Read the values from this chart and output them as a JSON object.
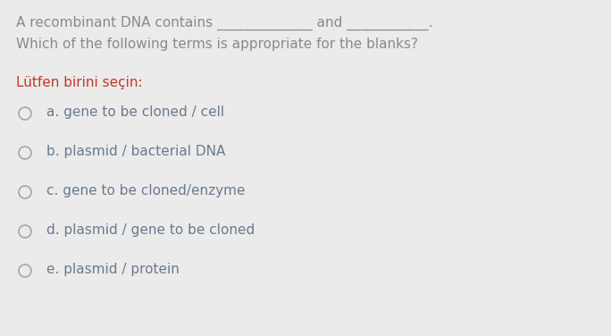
{
  "background_color": "#ebebeb",
  "question_line1": "A recombinant DNA contains ______________ and ____________.",
  "question_line2": "Which of the following terms is appropriate for the blanks?",
  "prompt_label": "Lütfen birini seçin:",
  "options": [
    "a. gene to be cloned / cell",
    "b. plasmid / bacterial DNA",
    "c. gene to be cloned/enzyme",
    "d. plasmid / gene to be cloned",
    "e. plasmid / protein"
  ],
  "question_color": "#8a8a8a",
  "prompt_color": "#c0392b",
  "option_color": "#6b7a8d",
  "circle_color": "#aaaaaa",
  "question_fontsize": 11.0,
  "prompt_fontsize": 11.0,
  "option_fontsize": 11.0,
  "fig_width": 6.84,
  "fig_height": 3.76,
  "dpi": 100
}
